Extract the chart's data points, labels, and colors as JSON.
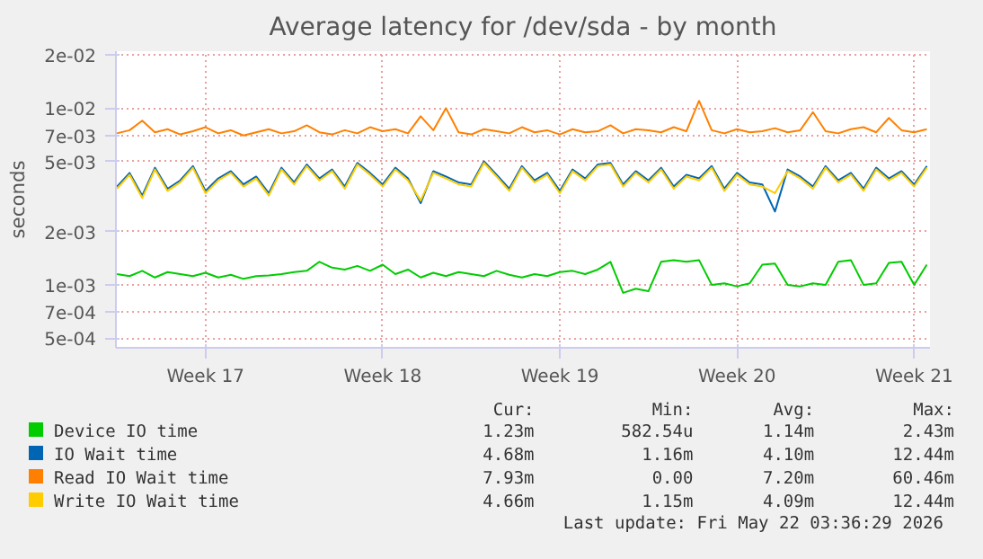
{
  "chart_data": {
    "type": "line",
    "title": "Average latency for /dev/sda - by month",
    "ylabel": "seconds",
    "x": [
      "2026-04-20T00:00",
      "2026-04-20T12:00",
      "2026-04-21T00:00",
      "2026-04-21T12:00",
      "2026-04-22T00:00",
      "2026-04-22T12:00",
      "2026-04-23T00:00",
      "2026-04-23T12:00",
      "2026-04-24T00:00",
      "2026-04-24T12:00",
      "2026-04-25T00:00",
      "2026-04-25T12:00",
      "2026-04-26T00:00",
      "2026-04-26T12:00",
      "2026-04-27T00:00",
      "2026-04-27T12:00",
      "2026-04-28T00:00",
      "2026-04-28T12:00",
      "2026-04-29T00:00",
      "2026-04-29T12:00",
      "2026-04-30T00:00",
      "2026-04-30T12:00",
      "2026-05-01T00:00",
      "2026-05-01T12:00",
      "2026-05-02T00:00",
      "2026-05-02T12:00",
      "2026-05-03T00:00",
      "2026-05-03T12:00",
      "2026-05-04T00:00",
      "2026-05-04T12:00",
      "2026-05-05T00:00",
      "2026-05-05T12:00",
      "2026-05-06T00:00",
      "2026-05-06T12:00",
      "2026-05-07T00:00",
      "2026-05-07T12:00",
      "2026-05-08T00:00",
      "2026-05-08T12:00",
      "2026-05-09T00:00",
      "2026-05-09T12:00",
      "2026-05-10T00:00",
      "2026-05-10T12:00",
      "2026-05-11T00:00",
      "2026-05-11T12:00",
      "2026-05-12T00:00",
      "2026-05-12T12:00",
      "2026-05-13T00:00",
      "2026-05-13T12:00",
      "2026-05-14T00:00",
      "2026-05-14T12:00",
      "2026-05-15T00:00",
      "2026-05-15T12:00",
      "2026-05-16T00:00",
      "2026-05-16T12:00",
      "2026-05-17T00:00",
      "2026-05-17T12:00",
      "2026-05-18T00:00",
      "2026-05-18T12:00",
      "2026-05-19T00:00",
      "2026-05-19T12:00",
      "2026-05-20T00:00",
      "2026-05-20T12:00",
      "2026-05-21T00:00",
      "2026-05-21T12:00",
      "2026-05-22T00:00"
    ],
    "series": [
      {
        "name": "Device IO time",
        "color": "#00cc00",
        "values": [
          0.00115,
          0.00112,
          0.0012,
          0.0011,
          0.00118,
          0.00115,
          0.00112,
          0.00117,
          0.0011,
          0.00114,
          0.00108,
          0.00112,
          0.00113,
          0.00115,
          0.00118,
          0.0012,
          0.00135,
          0.00125,
          0.00122,
          0.00128,
          0.0012,
          0.0013,
          0.00115,
          0.00122,
          0.0011,
          0.00117,
          0.00112,
          0.00118,
          0.00115,
          0.00112,
          0.0012,
          0.00114,
          0.0011,
          0.00115,
          0.00112,
          0.00118,
          0.0012,
          0.00115,
          0.00122,
          0.00135,
          0.0009,
          0.00095,
          0.00092,
          0.00135,
          0.00138,
          0.00135,
          0.00138,
          0.001,
          0.00102,
          0.00098,
          0.00102,
          0.0013,
          0.00132,
          0.001,
          0.00098,
          0.00102,
          0.001,
          0.00135,
          0.00138,
          0.001,
          0.00102,
          0.00133,
          0.00135,
          0.001,
          0.0013
        ]
      },
      {
        "name": "IO Wait time",
        "color": "#0066b3",
        "values": [
          0.0036,
          0.0043,
          0.0032,
          0.0046,
          0.0035,
          0.0039,
          0.0047,
          0.0034,
          0.004,
          0.0044,
          0.0037,
          0.0041,
          0.0033,
          0.0046,
          0.0038,
          0.0048,
          0.004,
          0.0045,
          0.0036,
          0.0049,
          0.0043,
          0.0037,
          0.0046,
          0.004,
          0.0029,
          0.0044,
          0.0041,
          0.0038,
          0.0037,
          0.005,
          0.0042,
          0.0035,
          0.0047,
          0.0039,
          0.0043,
          0.0034,
          0.0045,
          0.004,
          0.0048,
          0.0049,
          0.0037,
          0.0044,
          0.0039,
          0.0046,
          0.0036,
          0.0042,
          0.004,
          0.0047,
          0.0035,
          0.0043,
          0.0038,
          0.0037,
          0.0026,
          0.0045,
          0.0041,
          0.0036,
          0.0047,
          0.0039,
          0.0043,
          0.0035,
          0.0046,
          0.004,
          0.0044,
          0.0037,
          0.0047
        ]
      },
      {
        "name": "Read IO Wait time",
        "color": "#ff8000",
        "values": [
          0.0072,
          0.0075,
          0.0085,
          0.0073,
          0.0076,
          0.0071,
          0.0074,
          0.0078,
          0.0072,
          0.0075,
          0.007,
          0.0073,
          0.0076,
          0.0072,
          0.0074,
          0.008,
          0.0073,
          0.0071,
          0.0075,
          0.0072,
          0.0078,
          0.0074,
          0.0076,
          0.0072,
          0.009,
          0.0075,
          0.01,
          0.0073,
          0.0071,
          0.0076,
          0.0074,
          0.0072,
          0.0078,
          0.0073,
          0.0075,
          0.0071,
          0.0076,
          0.0073,
          0.0074,
          0.008,
          0.0072,
          0.0076,
          0.0075,
          0.0073,
          0.0078,
          0.0074,
          0.011,
          0.0075,
          0.0072,
          0.0076,
          0.0073,
          0.0074,
          0.0077,
          0.0073,
          0.0075,
          0.0095,
          0.0074,
          0.0072,
          0.0076,
          0.0078,
          0.0073,
          0.0088,
          0.0075,
          0.0073,
          0.0076
        ]
      },
      {
        "name": "Write IO Wait time",
        "color": "#ffcc00",
        "values": [
          0.0035,
          0.0042,
          0.0031,
          0.0045,
          0.0034,
          0.0038,
          0.0046,
          0.0033,
          0.0039,
          0.0043,
          0.0036,
          0.004,
          0.0032,
          0.0045,
          0.0037,
          0.0047,
          0.0039,
          0.0044,
          0.0035,
          0.0048,
          0.0042,
          0.0036,
          0.0045,
          0.0039,
          0.003,
          0.0043,
          0.004,
          0.0037,
          0.0036,
          0.0049,
          0.0041,
          0.0034,
          0.0046,
          0.0038,
          0.0042,
          0.0033,
          0.0044,
          0.0039,
          0.0047,
          0.0048,
          0.0036,
          0.0043,
          0.0038,
          0.0045,
          0.0035,
          0.0041,
          0.0039,
          0.0046,
          0.0034,
          0.0042,
          0.0037,
          0.0036,
          0.0033,
          0.0044,
          0.004,
          0.0035,
          0.0046,
          0.0038,
          0.0042,
          0.0034,
          0.0045,
          0.0039,
          0.0043,
          0.0036,
          0.0046
        ]
      }
    ],
    "xlim": [
      "2026-04-19T23:00",
      "2026-05-22T03:00"
    ],
    "xticks": [
      {
        "value": "2026-04-23T12:00",
        "label": "Week 17"
      },
      {
        "value": "2026-04-30T12:00",
        "label": "Week 18"
      },
      {
        "value": "2026-05-07T12:00",
        "label": "Week 19"
      },
      {
        "value": "2026-05-14T12:00",
        "label": "Week 20"
      },
      {
        "value": "2026-05-21T12:00",
        "label": "Week 21"
      }
    ],
    "log": "y",
    "ylim": [
      0.00044,
      0.021
    ],
    "yticks": [
      {
        "value": 0.0005,
        "label": "5e-04"
      },
      {
        "value": 0.0007,
        "label": "7e-04"
      },
      {
        "value": 0.001,
        "label": "1e-03"
      },
      {
        "value": 0.002,
        "label": "2e-03"
      },
      {
        "value": 0.005,
        "label": "5e-03"
      },
      {
        "value": 0.007,
        "label": "7e-03"
      },
      {
        "value": 0.01,
        "label": "1e-02"
      },
      {
        "value": 0.02,
        "label": "2e-02"
      }
    ],
    "grid": true,
    "legend": "bottom",
    "marker": "none",
    "line_style": "solid",
    "annotations": [
      "Cur:",
      "Min:",
      "Avg:",
      "Max:",
      "1.23m",
      "582.54u",
      "1.14m",
      "2.43m",
      "4.68m",
      "1.16m",
      "4.10m",
      "12.44m",
      "7.93m",
      "0.00",
      "7.20m",
      "60.46m",
      "4.66m",
      "1.15m",
      "4.09m",
      "12.44m",
      "Last update: Fri May 22 03:36:29 2026"
    ]
  }
}
